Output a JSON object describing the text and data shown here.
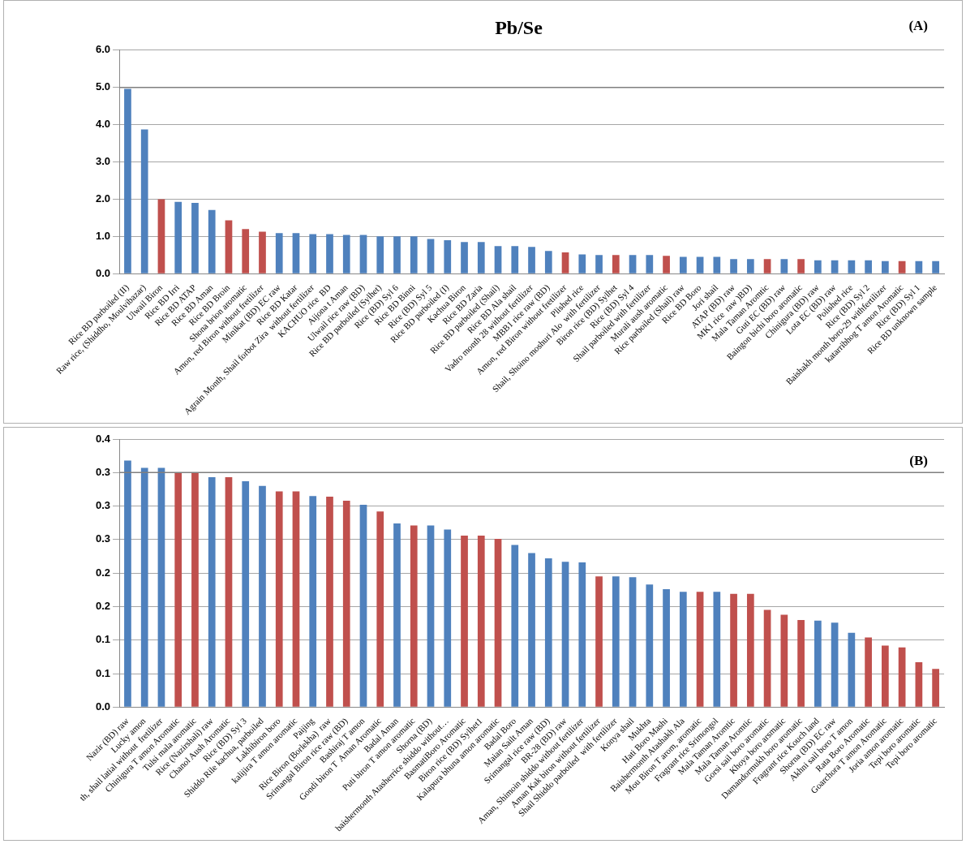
{
  "chart_data": [
    {
      "type": "bar",
      "title": "Pb/Se",
      "annotations": [
        "(A)"
      ],
      "categories": [
        "Rice BD parboiled (II)",
        "Raw rice, (Shiddho, Moulvibazar)",
        "Ulwail Biron",
        "Rice BD Irri",
        "Rice BD ATAP",
        "Rice BD Aman",
        "Rice BD Broin",
        "Shona brion aromatic",
        "Amon, red Biron without fretilizer",
        "Minikat (BD) EC raw",
        "Rice BD Katar",
        "Agrain Month, Shail forbot Zira  without fertilizer",
        "KACHUO rice  BD",
        "Aijona t Aman",
        "Ulwail rice raw (BD)",
        "Rice BD parboiled (Sylhet)",
        "Rice (BD) Syl 6",
        "Rice BD Binni",
        "Rice (BD) Syl 5",
        "Rice BD parboiled (I)",
        "Kachua Biron",
        "Rice BD Zaria",
        "Rice BD parboiled (Shail)",
        "Rice BD Ala shail",
        "Vadro month 28 without fertilizer",
        "MBB1 rice raw (BD)",
        "Amon, red Biron without fretilizer",
        "Plished rice",
        "Shail, Shoino moshuri Alo  with fertilizer",
        "Biron rice (BD) Sylhet",
        "Rice (BD) Syl 4",
        "Shail parboiled with fertilizer",
        "Murali aush aromatic",
        "Rice parboiled (Shail) raw",
        "Rice BD Boro",
        "Jori shail",
        "ATAP (BD) raw",
        "MK1 rice  raw )BD)",
        "Mala Taman Aromtic",
        "Guti EC (BD) raw",
        "Baingon bichi boro aromatic",
        "Chinigura (BD) raw",
        "Lota EC (BD) raw",
        "Polished rice",
        "Rice (BD) Syl 2",
        "Baishakh month boro-29 withfertilizer",
        "katarribhog T amon Aromatic",
        "Rice (BD) Syl 1",
        "Rice BD unknown sample"
      ],
      "values": [
        4.96,
        3.87,
        2.0,
        1.93,
        1.9,
        1.71,
        1.43,
        1.2,
        1.13,
        1.09,
        1.09,
        1.06,
        1.06,
        1.04,
        1.04,
        1.0,
        1.0,
        1.0,
        0.93,
        0.9,
        0.85,
        0.85,
        0.74,
        0.74,
        0.72,
        0.61,
        0.57,
        0.52,
        0.5,
        0.5,
        0.5,
        0.5,
        0.48,
        0.45,
        0.45,
        0.45,
        0.39,
        0.39,
        0.39,
        0.39,
        0.39,
        0.36,
        0.36,
        0.36,
        0.36,
        0.34,
        0.34,
        0.34,
        0.34
      ],
      "colors": [
        "#4f81bd",
        "#4f81bd",
        "#c0504d",
        "#4f81bd",
        "#4f81bd",
        "#4f81bd",
        "#c0504d",
        "#c0504d",
        "#c0504d",
        "#4f81bd",
        "#4f81bd",
        "#4f81bd",
        "#4f81bd",
        "#4f81bd",
        "#4f81bd",
        "#4f81bd",
        "#4f81bd",
        "#4f81bd",
        "#4f81bd",
        "#4f81bd",
        "#4f81bd",
        "#4f81bd",
        "#4f81bd",
        "#4f81bd",
        "#4f81bd",
        "#4f81bd",
        "#c0504d",
        "#4f81bd",
        "#4f81bd",
        "#c0504d",
        "#4f81bd",
        "#4f81bd",
        "#c0504d",
        "#4f81bd",
        "#4f81bd",
        "#4f81bd",
        "#4f81bd",
        "#4f81bd",
        "#c0504d",
        "#4f81bd",
        "#c0504d",
        "#4f81bd",
        "#4f81bd",
        "#4f81bd",
        "#4f81bd",
        "#4f81bd",
        "#c0504d",
        "#4f81bd",
        "#4f81bd"
      ],
      "ylim": [
        0,
        6
      ],
      "yticks": [
        {
          "value": 0,
          "label": "0.0"
        },
        {
          "value": 1,
          "label": "1.0"
        },
        {
          "value": 2,
          "label": "2.0"
        },
        {
          "value": 3,
          "label": "3.0"
        },
        {
          "value": 4,
          "label": "4.0"
        },
        {
          "value": 5,
          "label": "5.0"
        },
        {
          "value": 6,
          "label": "6.0"
        }
      ],
      "ref_lines": [
        {
          "axis": "y",
          "value": 5,
          "color": "#7f7f7f"
        }
      ],
      "grid": "y"
    },
    {
      "type": "bar",
      "annotations": [
        "(B)"
      ],
      "categories": [
        "Nazir (BD) raw",
        "Lucky amon",
        "th, shail latial without  fretilizer",
        "Chinigura T amon Aromatic",
        "Tulsi mala aromatic",
        "Rice (Nazirshali) raw",
        "Chanol Aush Aromatic",
        "Rice (BD) Syl 3",
        "Shiddo Rile kachua, parboiled",
        "Lakhibiron boro",
        "kalijira T amon aromatic",
        "Paijing",
        "Rice Biron (Borlekha)  raw",
        "Srimangal Biron rice raw (BD)",
        "Bashiraj T amon",
        "Gondi biron T  Aman Aromatic",
        "Badal Aman",
        "Puti biron T amon aromatic",
        "Shorna (BD)",
        "baishermonth Atasherrice shiddo without…",
        "BasmatiBoro Aromatic",
        "Biron rice (BD) Sylhet1",
        "Kalapura bhuna amon aromatic",
        "Badal Boro",
        "Maian Sailt Aman",
        "Srimangal rice raw (BD)",
        "BR-28 (BD) raw",
        "Aman, Shimoin shiddo without fertilizer",
        "Aman Kak biron without fertilizer",
        "Shail Shiddo parboiled  with fertilizer",
        "Konya shail",
        "Mukhta",
        "Hati Boro Mashi",
        "Baishermonth Atashakh Ala",
        "Mou Biron T arom, aromatic",
        "Fragrant rice Srimongol",
        "Mala Taman Aromtic",
        "Mala Taman Aromtic",
        "Gorsi sail boro aromatic",
        "Khoya boro arsmatic",
        "Damandormukh boro aromatic",
        "Fragrant rice Kouch land",
        "Shorna (BD) EC raw",
        "Akhni sail boro T amon",
        "Rata Boro Aromatic",
        "Goarchora T amon Aromatic",
        "Joria amon aromatic",
        "Tepi boro aromatic",
        "Tepi boro aromatic"
      ],
      "values": [
        0.368,
        0.357,
        0.357,
        0.35,
        0.35,
        0.343,
        0.343,
        0.337,
        0.33,
        0.322,
        0.322,
        0.315,
        0.314,
        0.308,
        0.302,
        0.292,
        0.274,
        0.271,
        0.271,
        0.265,
        0.256,
        0.256,
        0.251,
        0.242,
        0.23,
        0.222,
        0.217,
        0.216,
        0.195,
        0.195,
        0.194,
        0.183,
        0.176,
        0.172,
        0.172,
        0.172,
        0.169,
        0.169,
        0.145,
        0.138,
        0.13,
        0.129,
        0.126,
        0.111,
        0.104,
        0.092,
        0.089,
        0.067,
        0.057
      ],
      "colors": [
        "#4f81bd",
        "#4f81bd",
        "#4f81bd",
        "#c0504d",
        "#c0504d",
        "#4f81bd",
        "#c0504d",
        "#4f81bd",
        "#4f81bd",
        "#c0504d",
        "#c0504d",
        "#4f81bd",
        "#c0504d",
        "#c0504d",
        "#4f81bd",
        "#c0504d",
        "#4f81bd",
        "#c0504d",
        "#4f81bd",
        "#4f81bd",
        "#c0504d",
        "#c0504d",
        "#c0504d",
        "#4f81bd",
        "#4f81bd",
        "#4f81bd",
        "#4f81bd",
        "#4f81bd",
        "#c0504d",
        "#4f81bd",
        "#4f81bd",
        "#4f81bd",
        "#4f81bd",
        "#4f81bd",
        "#c0504d",
        "#4f81bd",
        "#c0504d",
        "#c0504d",
        "#c0504d",
        "#c0504d",
        "#c0504d",
        "#4f81bd",
        "#4f81bd",
        "#4f81bd",
        "#c0504d",
        "#c0504d",
        "#c0504d",
        "#c0504d",
        "#c0504d"
      ],
      "ylim": [
        0,
        0.4
      ],
      "yticks": [
        {
          "value": 0,
          "label": "0.0"
        },
        {
          "value": 0.05,
          "label": "0.1"
        },
        {
          "value": 0.1,
          "label": "0.1"
        },
        {
          "value": 0.15,
          "label": "0.2"
        },
        {
          "value": 0.2,
          "label": "0.2"
        },
        {
          "value": 0.25,
          "label": "0.3"
        },
        {
          "value": 0.3,
          "label": "0.3"
        },
        {
          "value": 0.35,
          "label": "0.3"
        },
        {
          "value": 0.4,
          "label": "0.4"
        }
      ],
      "ref_lines": [
        {
          "axis": "y",
          "value": 0.35,
          "color": "#7f7f7f"
        }
      ],
      "grid": "y"
    }
  ]
}
